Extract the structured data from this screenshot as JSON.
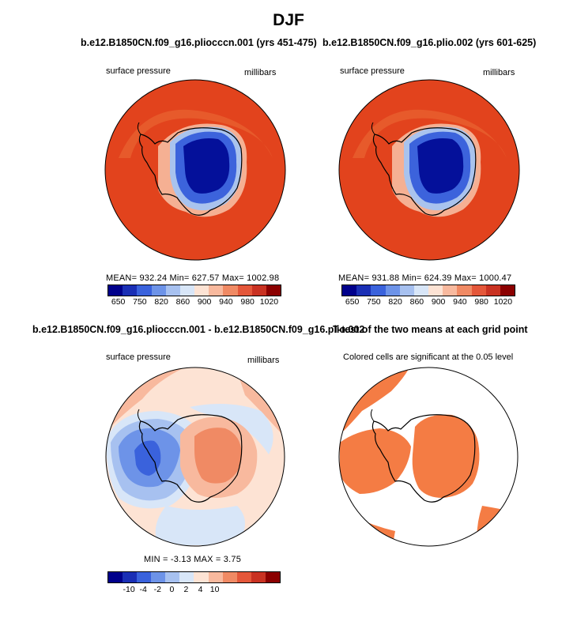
{
  "title": "DJF",
  "colors": {
    "abs_levels": [
      "#00008b",
      "#1a2fb5",
      "#3a62dc",
      "#6d93e8",
      "#a7c1f0",
      "#d8e6f8",
      "#fde3d4",
      "#f8b99e",
      "#f08a64",
      "#e4573a",
      "#c93222",
      "#8b0000"
    ],
    "diff_levels": [
      "#00008b",
      "#1a2fb5",
      "#3a62dc",
      "#6d93e8",
      "#a7c1f0",
      "#d8e6f8",
      "#fde3d4",
      "#f8b99e",
      "#f08a64",
      "#e4573a",
      "#c93222",
      "#8b0000"
    ],
    "ocean_abs": "#e2431d",
    "ocean_abs_edge": "#e86a35",
    "significant": "#f47c44",
    "coast": "#000000"
  },
  "panels": [
    {
      "title": "b.e12.B1850CN.f09_g16.pliocccn.001 (yrs 451-475)",
      "left_label": "surface pressure",
      "right_label": "millibars",
      "stats": "MEAN= 932.24   Min= 627.57   Max= 1002.98"
    },
    {
      "title": "b.e12.B1850CN.f09_g16.plio.002 (yrs 601-625)",
      "left_label": "surface pressure",
      "right_label": "millibars",
      "stats": "MEAN= 931.88   Min= 624.39   Max= 1000.47"
    },
    {
      "title": "b.e12.B1850CN.f09_g16.pliocccn.001 - b.e12.B1850CN.f09_g16.plio.002",
      "left_label": "surface pressure",
      "right_label": "millibars",
      "stats": "MIN =   -3.13  MAX =    3.75"
    },
    {
      "title": "T-test of the two means at each grid point",
      "left_label": "Colored cells are significant at the 0.05 level"
    }
  ],
  "chart_data": [
    {
      "type": "heatmap",
      "projection": "south-polar stereographic",
      "variable": "surface pressure",
      "units": "millibars",
      "colorbar_labels": [
        "650",
        "750",
        "820",
        "860",
        "900",
        "940",
        "980",
        "1020"
      ],
      "colorbar_levels": [
        650,
        700,
        750,
        800,
        820,
        840,
        860,
        880,
        900,
        920,
        940,
        960,
        980,
        1000,
        1020
      ],
      "mean": 932.24,
      "min": 627.57,
      "max": 1002.98
    },
    {
      "type": "heatmap",
      "projection": "south-polar stereographic",
      "variable": "surface pressure",
      "units": "millibars",
      "colorbar_labels": [
        "650",
        "750",
        "820",
        "860",
        "900",
        "940",
        "980",
        "1020"
      ],
      "colorbar_levels": [
        650,
        700,
        750,
        800,
        820,
        840,
        860,
        880,
        900,
        920,
        940,
        960,
        980,
        1000,
        1020
      ],
      "mean": 931.88,
      "min": 624.39,
      "max": 1000.47
    },
    {
      "type": "heatmap",
      "projection": "south-polar stereographic",
      "variable": "surface pressure difference",
      "units": "millibars",
      "colorbar_labels": [
        "-10",
        "-4",
        "-2",
        "0",
        "2",
        "4",
        "10"
      ],
      "colorbar_levels": [
        -10,
        -4,
        -2,
        0,
        2,
        4,
        10
      ],
      "min": -3.13,
      "max": 3.75
    },
    {
      "type": "heatmap",
      "projection": "south-polar stereographic",
      "variable": "t-test significance mask",
      "significance_level": 0.05
    }
  ]
}
